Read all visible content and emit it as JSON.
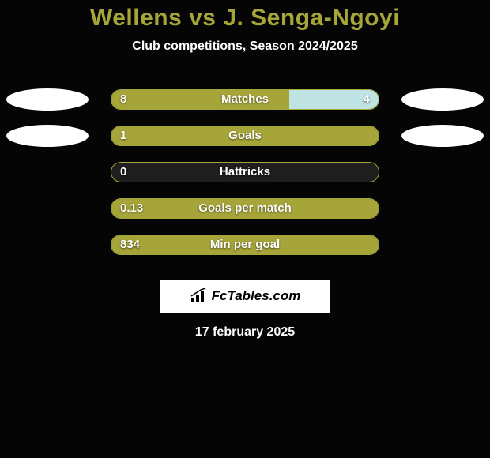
{
  "background_color": "#050505",
  "title": {
    "text": "Wellens vs J. Senga-Ngoyi",
    "color": "#a6a539",
    "fontsize": 30
  },
  "subtitle": {
    "text": "Club competitions, Season 2024/2025",
    "color": "#ffffff",
    "fontsize": 16
  },
  "bar_container_bg": "#1e1e1e",
  "egg_color": "#ffffff",
  "rows": [
    {
      "label": "Matches",
      "left_value": "8",
      "right_value": "4",
      "left_pct": 66.7,
      "right_pct": 33.3,
      "left_color": "#a6a539",
      "right_color": "#bfe3e3",
      "show_left_egg": true,
      "show_right_egg": true
    },
    {
      "label": "Goals",
      "left_value": "1",
      "right_value": "",
      "left_pct": 100,
      "right_pct": 0,
      "left_color": "#a6a539",
      "right_color": "#bfe3e3",
      "show_left_egg": true,
      "show_right_egg": true
    },
    {
      "label": "Hattricks",
      "left_value": "0",
      "right_value": "",
      "left_pct": 0,
      "right_pct": 0,
      "left_color": "#a6a539",
      "right_color": "#bfe3e3",
      "show_left_egg": false,
      "show_right_egg": false
    },
    {
      "label": "Goals per match",
      "left_value": "0.13",
      "right_value": "",
      "left_pct": 100,
      "right_pct": 0,
      "left_color": "#a6a539",
      "right_color": "#bfe3e3",
      "show_left_egg": false,
      "show_right_egg": false
    },
    {
      "label": "Min per goal",
      "left_value": "834",
      "right_value": "",
      "left_pct": 100,
      "right_pct": 0,
      "left_color": "#a6a539",
      "right_color": "#bfe3e3",
      "show_left_egg": false,
      "show_right_egg": false
    }
  ],
  "logo": {
    "text": "FcTables.com",
    "icon_name": "bar-chart-icon"
  },
  "date": {
    "text": "17 february 2025",
    "color": "#ffffff",
    "fontsize": 16
  },
  "label_fontsize": 15,
  "value_fontsize": 15
}
